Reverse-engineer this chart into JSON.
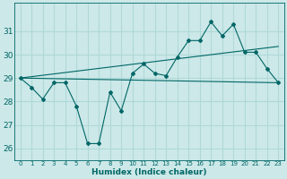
{
  "xlabel": "Humidex (Indice chaleur)",
  "bg_color": "#cce8e8",
  "grid_color": "#b0d8d8",
  "line_color": "#006666",
  "x": [
    0,
    1,
    2,
    3,
    4,
    5,
    6,
    7,
    8,
    9,
    10,
    11,
    12,
    13,
    14,
    15,
    16,
    17,
    18,
    19,
    20,
    21,
    22,
    23
  ],
  "y_main": [
    29.0,
    28.6,
    28.1,
    28.8,
    28.8,
    27.8,
    26.2,
    26.2,
    28.4,
    27.6,
    29.2,
    29.6,
    29.2,
    29.1,
    29.9,
    30.6,
    30.6,
    31.4,
    30.8,
    31.3,
    30.1,
    30.1,
    29.4,
    28.8
  ],
  "trend1_x": [
    0,
    23
  ],
  "trend1_y": [
    29.0,
    28.8
  ],
  "trend2_x": [
    0,
    23
  ],
  "trend2_y": [
    29.0,
    30.35
  ],
  "ylim": [
    25.5,
    32.2
  ],
  "xlim": [
    -0.5,
    23.5
  ],
  "yticks": [
    26,
    27,
    28,
    29,
    30,
    31
  ],
  "xticks": [
    0,
    1,
    2,
    3,
    4,
    5,
    6,
    7,
    8,
    9,
    10,
    11,
    12,
    13,
    14,
    15,
    16,
    17,
    18,
    19,
    20,
    21,
    22,
    23
  ],
  "xlabel_fontsize": 6.5,
  "ytick_fontsize": 6.5,
  "xtick_fontsize": 5.0,
  "linewidth": 0.8,
  "markersize": 2.0
}
